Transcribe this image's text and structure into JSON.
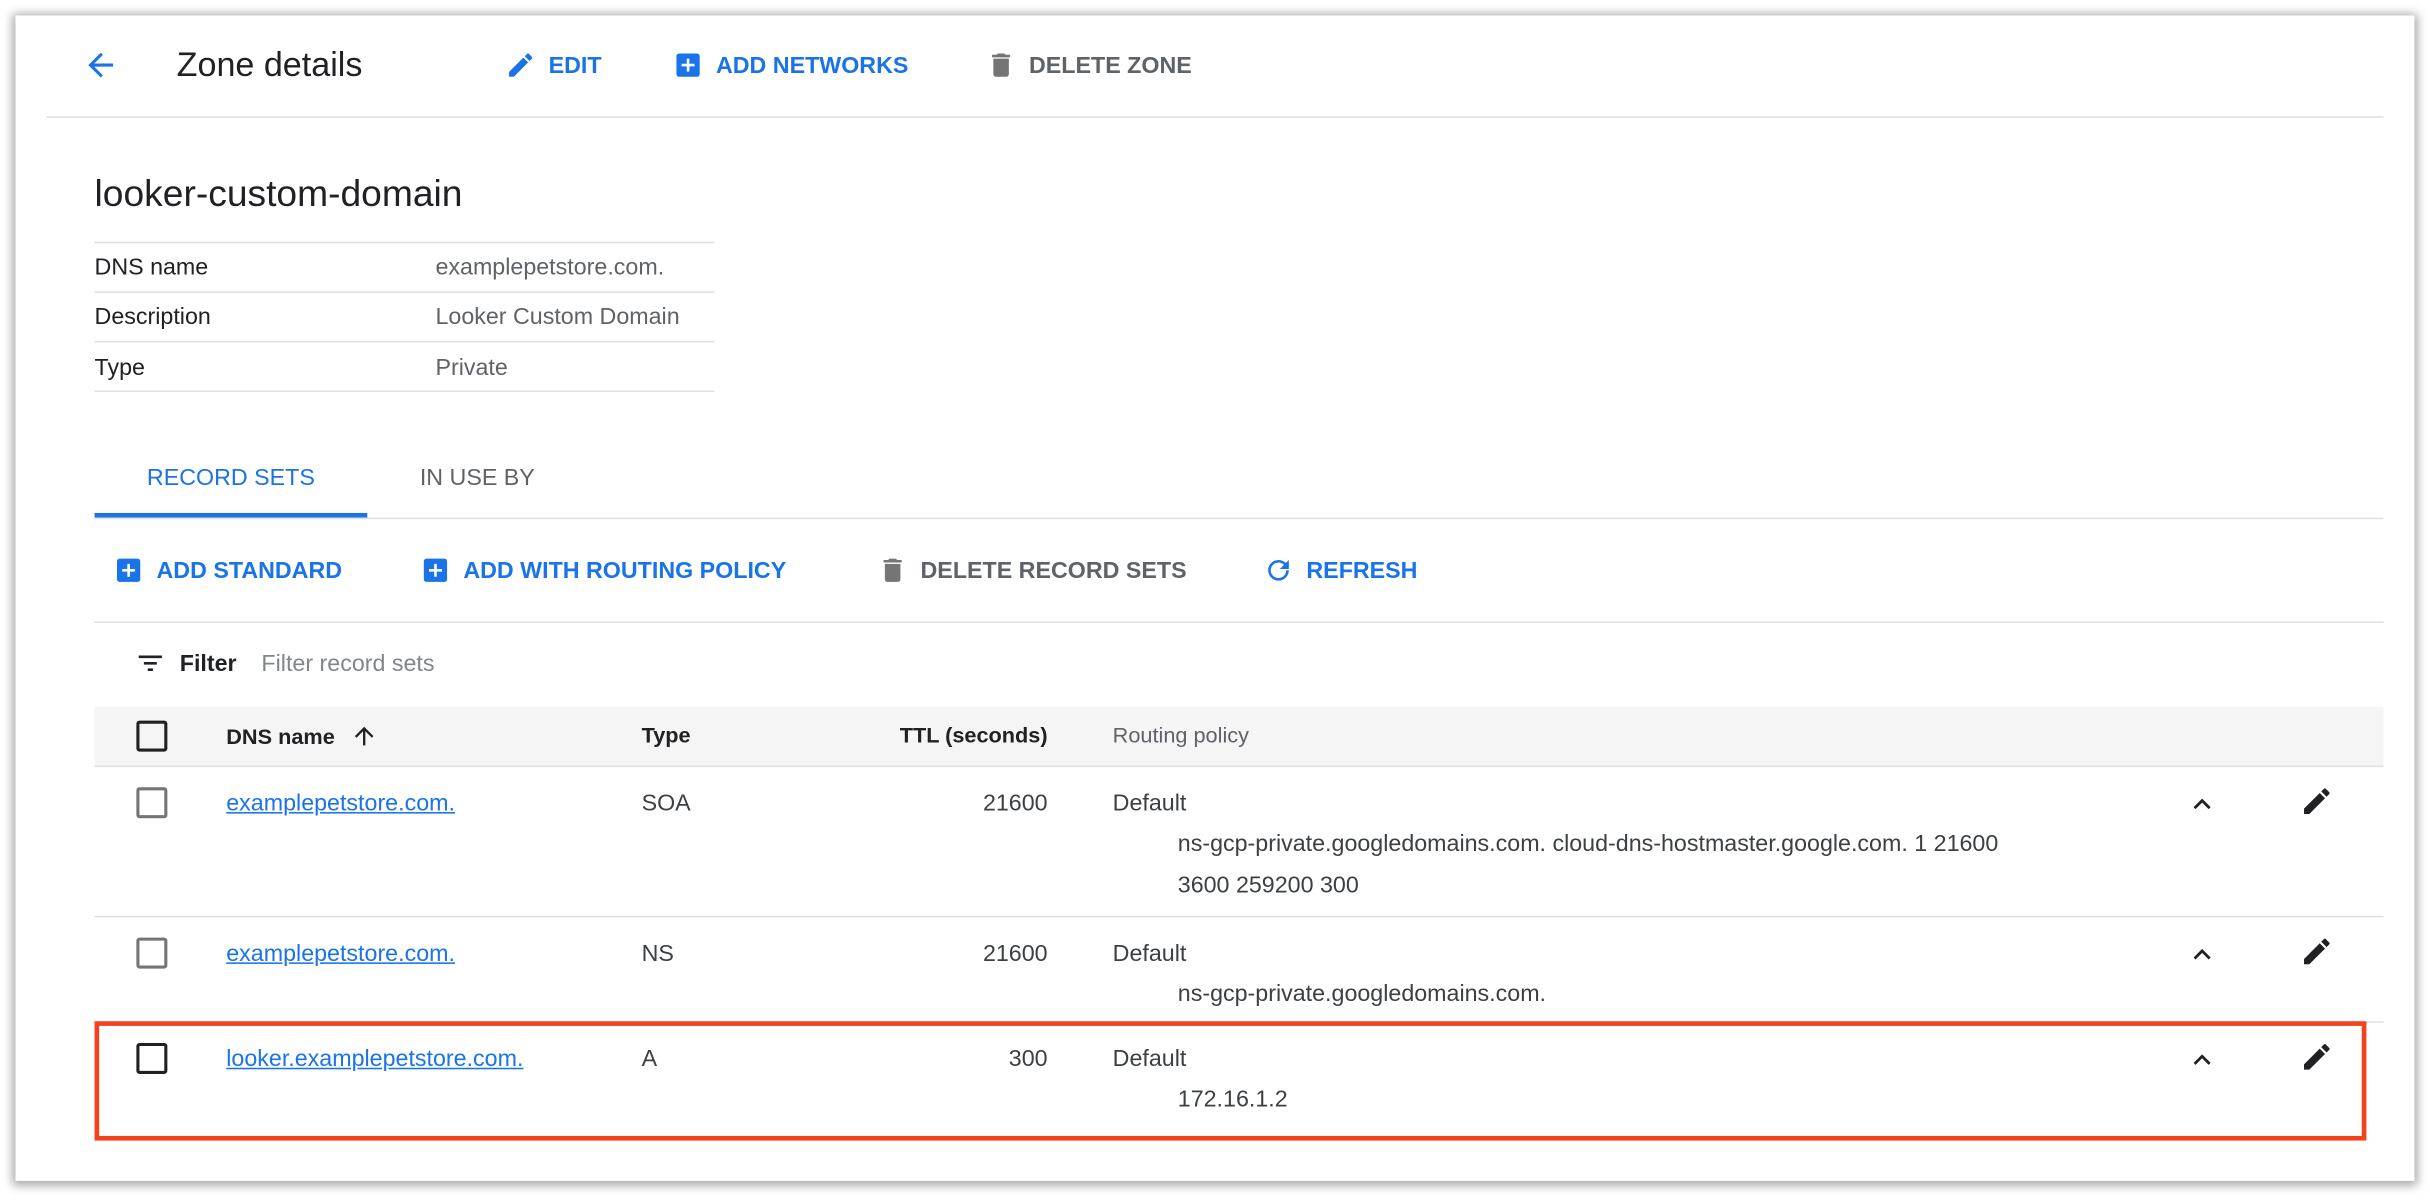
{
  "header": {
    "title": "Zone details",
    "edit": "EDIT",
    "add_networks": "ADD NETWORKS",
    "delete_zone": "DELETE ZONE"
  },
  "zone": {
    "name": "looker-custom-domain",
    "details": [
      {
        "label": "DNS name",
        "value": "examplepetstore.com."
      },
      {
        "label": "Description",
        "value": "Looker Custom Domain"
      },
      {
        "label": "Type",
        "value": "Private"
      }
    ]
  },
  "tabs": [
    {
      "label": "RECORD SETS",
      "active": true
    },
    {
      "label": "IN USE BY",
      "active": false
    }
  ],
  "actions": {
    "add_standard": "ADD STANDARD",
    "add_routing": "ADD WITH ROUTING POLICY",
    "delete_records": "DELETE RECORD SETS",
    "refresh": "REFRESH"
  },
  "filter": {
    "label": "Filter",
    "placeholder": "Filter record sets"
  },
  "table": {
    "columns": {
      "dns_name": "DNS name",
      "type": "Type",
      "ttl": "TTL (seconds)",
      "routing": "Routing policy"
    },
    "rows": [
      {
        "dns_name": "examplepetstore.com.",
        "type": "SOA",
        "ttl": "21600",
        "routing": "Default",
        "data": [
          "ns-gcp-private.googledomains.com. cloud-dns-hostmaster.google.com. 1 21600",
          "3600 259200 300"
        ]
      },
      {
        "dns_name": "examplepetstore.com.",
        "type": "NS",
        "ttl": "21600",
        "routing": "Default",
        "data": [
          "ns-gcp-private.googledomains.com."
        ]
      },
      {
        "dns_name": "looker.examplepetstore.com.",
        "type": "A",
        "ttl": "300",
        "routing": "Default",
        "data": [
          "172.16.1.2"
        ],
        "highlighted": true
      }
    ]
  },
  "colors": {
    "accent": "#1a73e8",
    "highlight": "#f4421d",
    "header_bg": "#f5f5f5"
  }
}
